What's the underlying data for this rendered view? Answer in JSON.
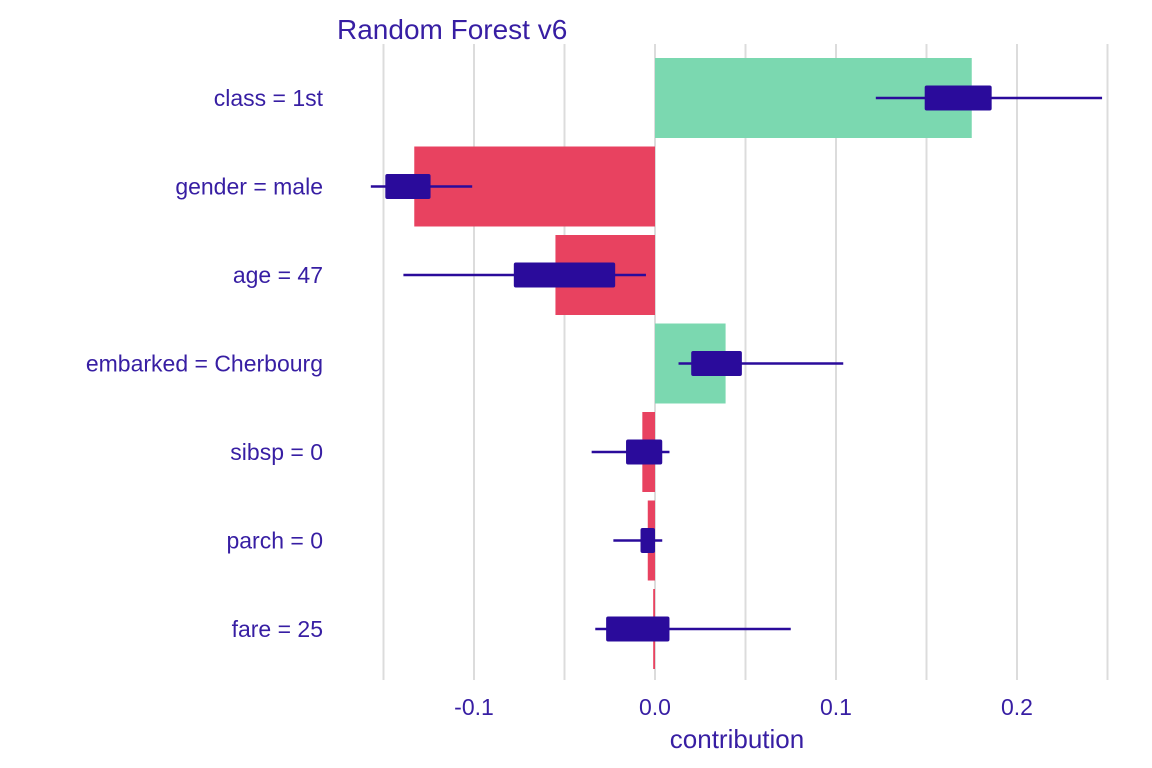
{
  "chart_data": {
    "type": "bar",
    "title": "Random Forest v6",
    "xlabel": "contribution",
    "ylabel": "",
    "xlim": [
      -0.15,
      0.25
    ],
    "xticks": [
      -0.1,
      0.0,
      0.1,
      0.2
    ],
    "xtick_labels": [
      "-0.1",
      "0.0",
      "0.1",
      "0.2"
    ],
    "grid": "vertical",
    "legend": "none",
    "colors": {
      "positive": "#7bd8b0",
      "negative": "#e84260",
      "boxplot": "#2a0b9b",
      "text": "#371ea3",
      "grid": "#dcdcdc"
    },
    "categories": [
      "class = 1st",
      "gender = male",
      "age = 47",
      "embarked = Cherbourg",
      "sibsp = 0",
      "parch = 0",
      "fare = 25"
    ],
    "values": [
      0.175,
      -0.133,
      -0.055,
      0.039,
      -0.007,
      -0.004,
      -0.001
    ],
    "boxplots": [
      {
        "min": 0.122,
        "q1": 0.149,
        "q3": 0.186,
        "max": 0.247
      },
      {
        "min": -0.157,
        "q1": -0.149,
        "q3": -0.124,
        "max": -0.101
      },
      {
        "min": -0.139,
        "q1": -0.078,
        "q3": -0.022,
        "max": -0.005
      },
      {
        "min": 0.013,
        "q1": 0.02,
        "q3": 0.048,
        "max": 0.104
      },
      {
        "min": -0.035,
        "q1": -0.016,
        "q3": 0.004,
        "max": 0.008
      },
      {
        "min": -0.023,
        "q1": -0.008,
        "q3": 0.0,
        "max": 0.004
      },
      {
        "min": -0.033,
        "q1": -0.027,
        "q3": 0.008,
        "max": 0.075
      }
    ]
  }
}
